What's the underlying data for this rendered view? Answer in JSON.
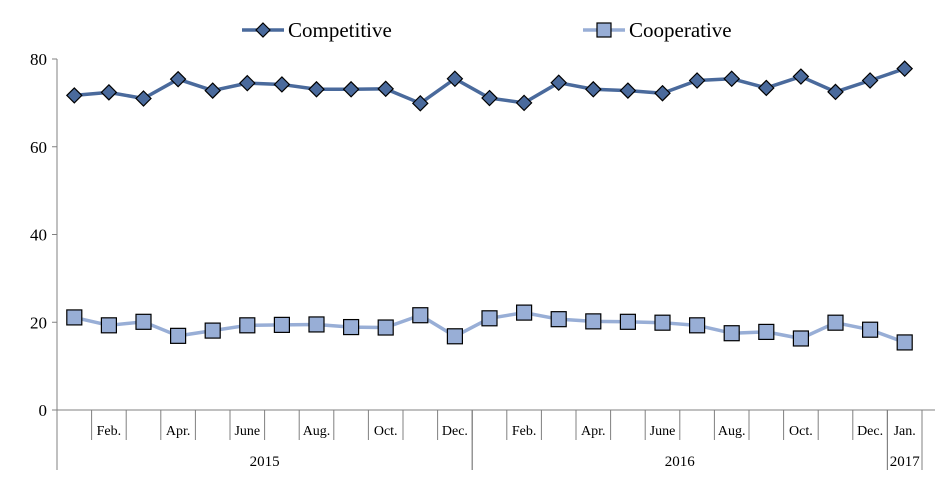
{
  "chart_data": {
    "type": "line",
    "title": "",
    "xlabel": "",
    "ylabel": "",
    "ylim": [
      0,
      80
    ],
    "yticks": [
      0,
      20,
      40,
      60,
      80
    ],
    "grid": false,
    "legend_position": "top",
    "categories": [
      "Jan. 2015",
      "Feb. 2015",
      "Mar. 2015",
      "Apr. 2015",
      "May 2015",
      "June 2015",
      "July 2015",
      "Aug. 2015",
      "Sep. 2015",
      "Oct. 2015",
      "Nov. 2015",
      "Dec. 2015",
      "Jan. 2016",
      "Feb. 2016",
      "Mar. 2016",
      "Apr. 2016",
      "May 2016",
      "June 2016",
      "July 2016",
      "Aug. 2016",
      "Sep. 2016",
      "Oct. 2016",
      "Nov. 2016",
      "Dec. 2016",
      "Jan. 2017"
    ],
    "tick_labels": [
      "",
      "Feb.",
      "",
      "Apr.",
      "",
      "June",
      "",
      "Aug.",
      "",
      "Oct.",
      "",
      "Dec.",
      "",
      "Feb.",
      "",
      "Apr.",
      "",
      "June",
      "",
      "Aug.",
      "",
      "Oct.",
      "",
      "Dec.",
      "Jan."
    ],
    "year_groups": [
      {
        "label": "2015",
        "start": 0,
        "end": 11
      },
      {
        "label": "2016",
        "start": 12,
        "end": 23
      },
      {
        "label": "2017",
        "start": 24,
        "end": 24
      }
    ],
    "series": [
      {
        "name": "Competitive",
        "color": "#4a6a9c",
        "marker_color": "#4a6a9c",
        "marker": "diamond",
        "values": [
          71.7,
          72.4,
          71.0,
          75.4,
          72.8,
          74.5,
          74.2,
          73.1,
          73.1,
          73.2,
          69.9,
          75.5,
          71.1,
          70.0,
          74.6,
          73.1,
          72.8,
          72.2,
          75.1,
          75.5,
          73.4,
          76.0,
          72.5,
          75.1,
          77.8
        ]
      },
      {
        "name": "Cooperative",
        "color": "#98aed6",
        "marker_color": "#98aed6",
        "marker": "square",
        "values": [
          21.1,
          19.3,
          20.1,
          16.9,
          18.1,
          19.3,
          19.4,
          19.5,
          18.9,
          18.8,
          21.6,
          16.8,
          20.9,
          22.2,
          20.7,
          20.2,
          20.1,
          19.9,
          19.3,
          17.5,
          17.8,
          16.3,
          19.9,
          18.3,
          15.4
        ]
      }
    ]
  }
}
